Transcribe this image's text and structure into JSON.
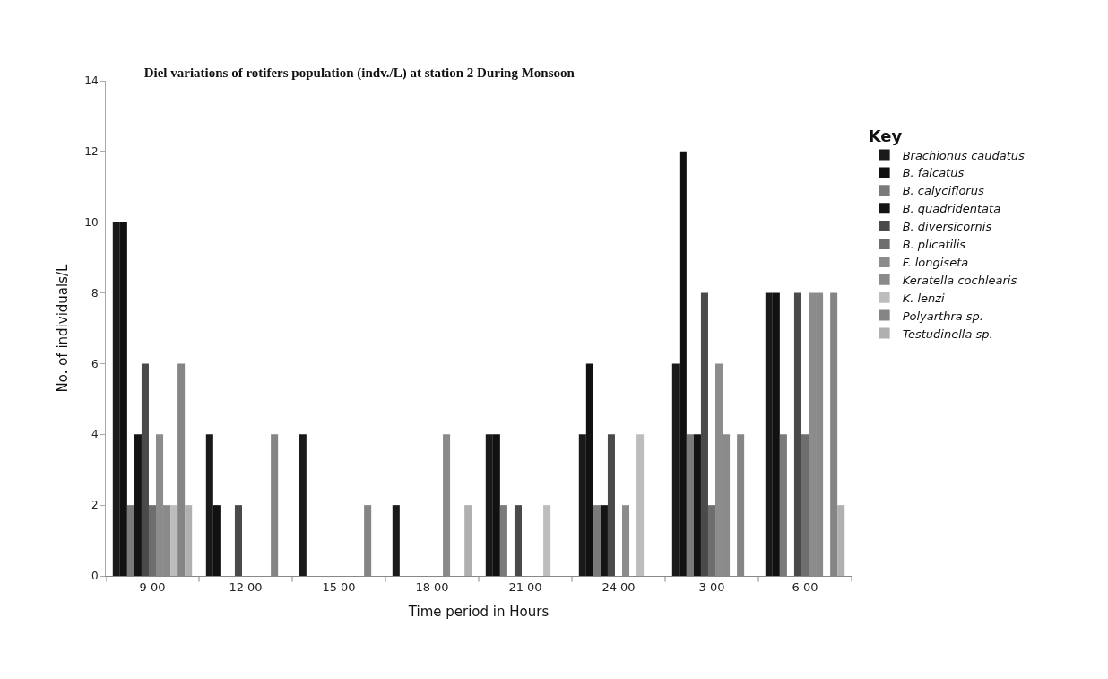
{
  "chart_data": {
    "type": "bar",
    "title": "Diel variations of rotifers population (indv./L) at station 2 During Monsoon",
    "xlabel": "Time period in Hours",
    "ylabel": "No. of individuals/L",
    "legend_title": "Key",
    "categories": [
      "9 00",
      "12 00",
      "15 00",
      "18 00",
      "21 00",
      "24 00",
      "3 00",
      "6 00"
    ],
    "series": [
      {
        "name": "Brachionus caudatus",
        "color": "#1a1a1a",
        "values": [
          10,
          4,
          4,
          2,
          4,
          4,
          6,
          8
        ]
      },
      {
        "name": "B. falcatus",
        "color": "#111111",
        "values": [
          10,
          2,
          0,
          0,
          4,
          6,
          12,
          8
        ]
      },
      {
        "name": "B. calyciflorus",
        "color": "#7a7a7a",
        "values": [
          2,
          0,
          0,
          0,
          2,
          2,
          4,
          4
        ]
      },
      {
        "name": "B. quadridentata",
        "color": "#141414",
        "values": [
          4,
          0,
          0,
          0,
          0,
          2,
          4,
          0
        ]
      },
      {
        "name": "B. diversicornis",
        "color": "#4a4a4a",
        "values": [
          6,
          2,
          0,
          0,
          2,
          4,
          8,
          8
        ]
      },
      {
        "name": "B. plicatilis",
        "color": "#6e6e6e",
        "values": [
          2,
          0,
          0,
          0,
          0,
          0,
          2,
          4
        ]
      },
      {
        "name": "F. longiseta",
        "color": "#8c8c8c",
        "values": [
          4,
          0,
          0,
          0,
          0,
          2,
          6,
          8
        ]
      },
      {
        "name": "Keratella cochlearis",
        "color": "#8a8a8a",
        "values": [
          2,
          0,
          0,
          4,
          0,
          0,
          4,
          8
        ]
      },
      {
        "name": "K. lenzi",
        "color": "#bdbdbd",
        "values": [
          2,
          0,
          0,
          0,
          2,
          4,
          0,
          0
        ]
      },
      {
        "name": "Polyarthra sp.",
        "color": "#858585",
        "values": [
          6,
          4,
          2,
          0,
          0,
          0,
          4,
          8
        ]
      },
      {
        "name": "Testudinella sp.",
        "color": "#b0b0b0",
        "values": [
          2,
          0,
          0,
          2,
          0,
          0,
          0,
          2
        ]
      }
    ],
    "ylim": [
      0,
      14
    ],
    "yticks": [
      0,
      2,
      4,
      6,
      8,
      10,
      12,
      14
    ],
    "legend": "right"
  }
}
